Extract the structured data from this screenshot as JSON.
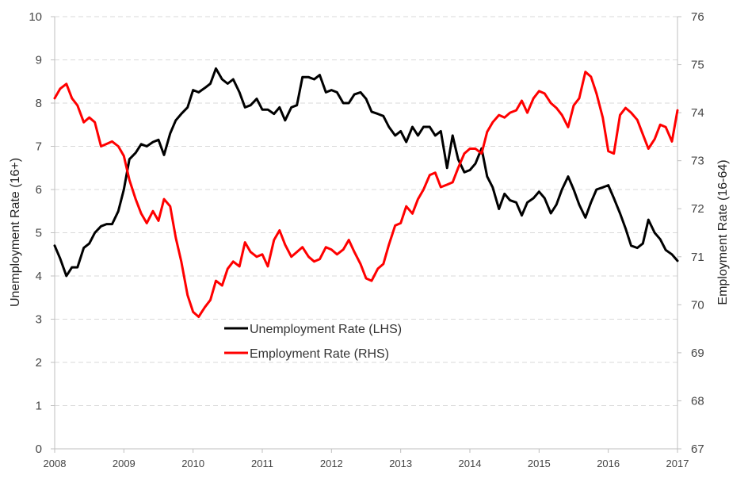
{
  "chart_data": {
    "type": "line",
    "xlabel": "",
    "ylabel": "Unemployment Rate (16+)",
    "y2label": "Employment Rate (16-64)",
    "xlim": [
      2008,
      2017
    ],
    "ylim": [
      0,
      10
    ],
    "y2lim": [
      67,
      76
    ],
    "x_ticks": [
      "2008",
      "2009",
      "2010",
      "2011",
      "2012",
      "2013",
      "2014",
      "2015",
      "2016",
      "2017"
    ],
    "y_ticks": [
      "0",
      "1",
      "2",
      "3",
      "4",
      "5",
      "6",
      "7",
      "8",
      "9",
      "10"
    ],
    "y2_ticks": [
      "67",
      "68",
      "69",
      "70",
      "71",
      "72",
      "73",
      "74",
      "75",
      "76"
    ],
    "grid": true,
    "legend_position": "center-left",
    "series": [
      {
        "name": "Unemployment Rate (LHS)",
        "axis": "left",
        "color": "#000000",
        "x": [
          2008.0,
          2008.08,
          2008.17,
          2008.25,
          2008.33,
          2008.42,
          2008.5,
          2008.58,
          2008.67,
          2008.75,
          2008.83,
          2008.92,
          2009.0,
          2009.08,
          2009.17,
          2009.25,
          2009.33,
          2009.42,
          2009.5,
          2009.58,
          2009.67,
          2009.75,
          2009.83,
          2009.92,
          2010.0,
          2010.08,
          2010.17,
          2010.25,
          2010.33,
          2010.42,
          2010.5,
          2010.58,
          2010.67,
          2010.75,
          2010.83,
          2010.92,
          2011.0,
          2011.08,
          2011.17,
          2011.25,
          2011.33,
          2011.42,
          2011.5,
          2011.58,
          2011.67,
          2011.75,
          2011.83,
          2011.92,
          2012.0,
          2012.08,
          2012.17,
          2012.25,
          2012.33,
          2012.42,
          2012.5,
          2012.58,
          2012.67,
          2012.75,
          2012.83,
          2012.92,
          2013.0,
          2013.08,
          2013.17,
          2013.25,
          2013.33,
          2013.42,
          2013.5,
          2013.58,
          2013.67,
          2013.75,
          2013.83,
          2013.92,
          2014.0,
          2014.08,
          2014.17,
          2014.25,
          2014.33,
          2014.42,
          2014.5,
          2014.58,
          2014.67,
          2014.75,
          2014.83,
          2014.92,
          2015.0,
          2015.08,
          2015.17,
          2015.25,
          2015.33,
          2015.42,
          2015.5,
          2015.58,
          2015.67,
          2015.75,
          2015.83,
          2015.92,
          2016.0,
          2016.08,
          2016.17,
          2016.25,
          2016.33,
          2016.42,
          2016.5,
          2016.58,
          2016.67,
          2016.75,
          2016.83,
          2016.92,
          2017.0
        ],
        "values": [
          4.7,
          4.4,
          4.0,
          4.2,
          4.2,
          4.65,
          4.75,
          5.0,
          5.15,
          5.2,
          5.2,
          5.5,
          6.0,
          6.7,
          6.85,
          7.05,
          7.0,
          7.1,
          7.15,
          6.8,
          7.3,
          7.6,
          7.75,
          7.9,
          8.3,
          8.25,
          8.35,
          8.45,
          8.8,
          8.55,
          8.45,
          8.55,
          8.25,
          7.9,
          7.95,
          8.1,
          7.85,
          7.85,
          7.75,
          7.9,
          7.6,
          7.9,
          7.95,
          8.6,
          8.6,
          8.55,
          8.65,
          8.25,
          8.3,
          8.25,
          8.0,
          8.0,
          8.2,
          8.25,
          8.1,
          7.8,
          7.75,
          7.7,
          7.45,
          7.25,
          7.35,
          7.1,
          7.45,
          7.25,
          7.45,
          7.45,
          7.25,
          7.35,
          6.5,
          7.25,
          6.7,
          6.4,
          6.45,
          6.6,
          6.95,
          6.3,
          6.05,
          5.55,
          5.9,
          5.75,
          5.7,
          5.4,
          5.7,
          5.8,
          5.95,
          5.8,
          5.45,
          5.65,
          6.0,
          6.3,
          6.0,
          5.65,
          5.35,
          5.7,
          6.0,
          6.05,
          6.1,
          5.8,
          5.45,
          5.1,
          4.7,
          4.65,
          4.75,
          5.3,
          5.0,
          4.85,
          4.6,
          4.5,
          4.35
        ]
      },
      {
        "name": "Employment Rate (RHS)",
        "axis": "right",
        "color": "#ff0000",
        "x": [
          2008.0,
          2008.08,
          2008.17,
          2008.25,
          2008.33,
          2008.42,
          2008.5,
          2008.58,
          2008.67,
          2008.75,
          2008.83,
          2008.92,
          2009.0,
          2009.08,
          2009.17,
          2009.25,
          2009.33,
          2009.42,
          2009.5,
          2009.58,
          2009.67,
          2009.75,
          2009.83,
          2009.92,
          2010.0,
          2010.08,
          2010.17,
          2010.25,
          2010.33,
          2010.42,
          2010.5,
          2010.58,
          2010.67,
          2010.75,
          2010.83,
          2010.92,
          2011.0,
          2011.08,
          2011.17,
          2011.25,
          2011.33,
          2011.42,
          2011.5,
          2011.58,
          2011.67,
          2011.75,
          2011.83,
          2011.92,
          2012.0,
          2012.08,
          2012.17,
          2012.25,
          2012.33,
          2012.42,
          2012.5,
          2012.58,
          2012.67,
          2012.75,
          2012.83,
          2012.92,
          2013.0,
          2013.08,
          2013.17,
          2013.25,
          2013.33,
          2013.42,
          2013.5,
          2013.58,
          2013.67,
          2013.75,
          2013.83,
          2013.92,
          2014.0,
          2014.08,
          2014.17,
          2014.25,
          2014.33,
          2014.42,
          2014.5,
          2014.58,
          2014.67,
          2014.75,
          2014.83,
          2014.92,
          2015.0,
          2015.08,
          2015.17,
          2015.25,
          2015.33,
          2015.42,
          2015.5,
          2015.58,
          2015.67,
          2015.75,
          2015.83,
          2015.92,
          2016.0,
          2016.08,
          2016.17,
          2016.25,
          2016.33,
          2016.42,
          2016.5,
          2016.58,
          2016.67,
          2016.75,
          2016.83,
          2016.92,
          2017.0
        ],
        "values": [
          74.3,
          74.5,
          74.6,
          74.3,
          74.15,
          73.8,
          73.9,
          73.8,
          73.3,
          73.35,
          73.4,
          73.3,
          73.1,
          72.6,
          72.2,
          71.9,
          71.7,
          71.95,
          71.75,
          72.2,
          72.05,
          71.4,
          70.9,
          70.2,
          69.85,
          69.75,
          69.95,
          70.1,
          70.5,
          70.4,
          70.75,
          70.9,
          70.8,
          71.3,
          71.1,
          71.0,
          71.05,
          70.8,
          71.35,
          71.55,
          71.25,
          71.0,
          71.1,
          71.2,
          71.0,
          70.9,
          70.95,
          71.2,
          71.15,
          71.05,
          71.15,
          71.35,
          71.1,
          70.85,
          70.55,
          70.5,
          70.75,
          70.85,
          71.25,
          71.65,
          71.7,
          72.05,
          71.9,
          72.2,
          72.4,
          72.7,
          72.75,
          72.45,
          72.5,
          72.55,
          72.85,
          73.15,
          73.25,
          73.25,
          73.15,
          73.6,
          73.8,
          73.95,
          73.9,
          74.0,
          74.05,
          74.25,
          74.0,
          74.3,
          74.45,
          74.4,
          74.2,
          74.1,
          73.95,
          73.7,
          74.15,
          74.3,
          74.85,
          74.75,
          74.4,
          73.9,
          73.2,
          73.15,
          73.95,
          74.1,
          74.0,
          73.85,
          73.55,
          73.25,
          73.45,
          73.75,
          73.7,
          73.4,
          74.05
        ]
      }
    ]
  },
  "colors": {
    "unemployment_line": "#000000",
    "employment_line": "#ff0000",
    "gridline": "#d9d9d9",
    "axis": "#bfbfbf"
  }
}
